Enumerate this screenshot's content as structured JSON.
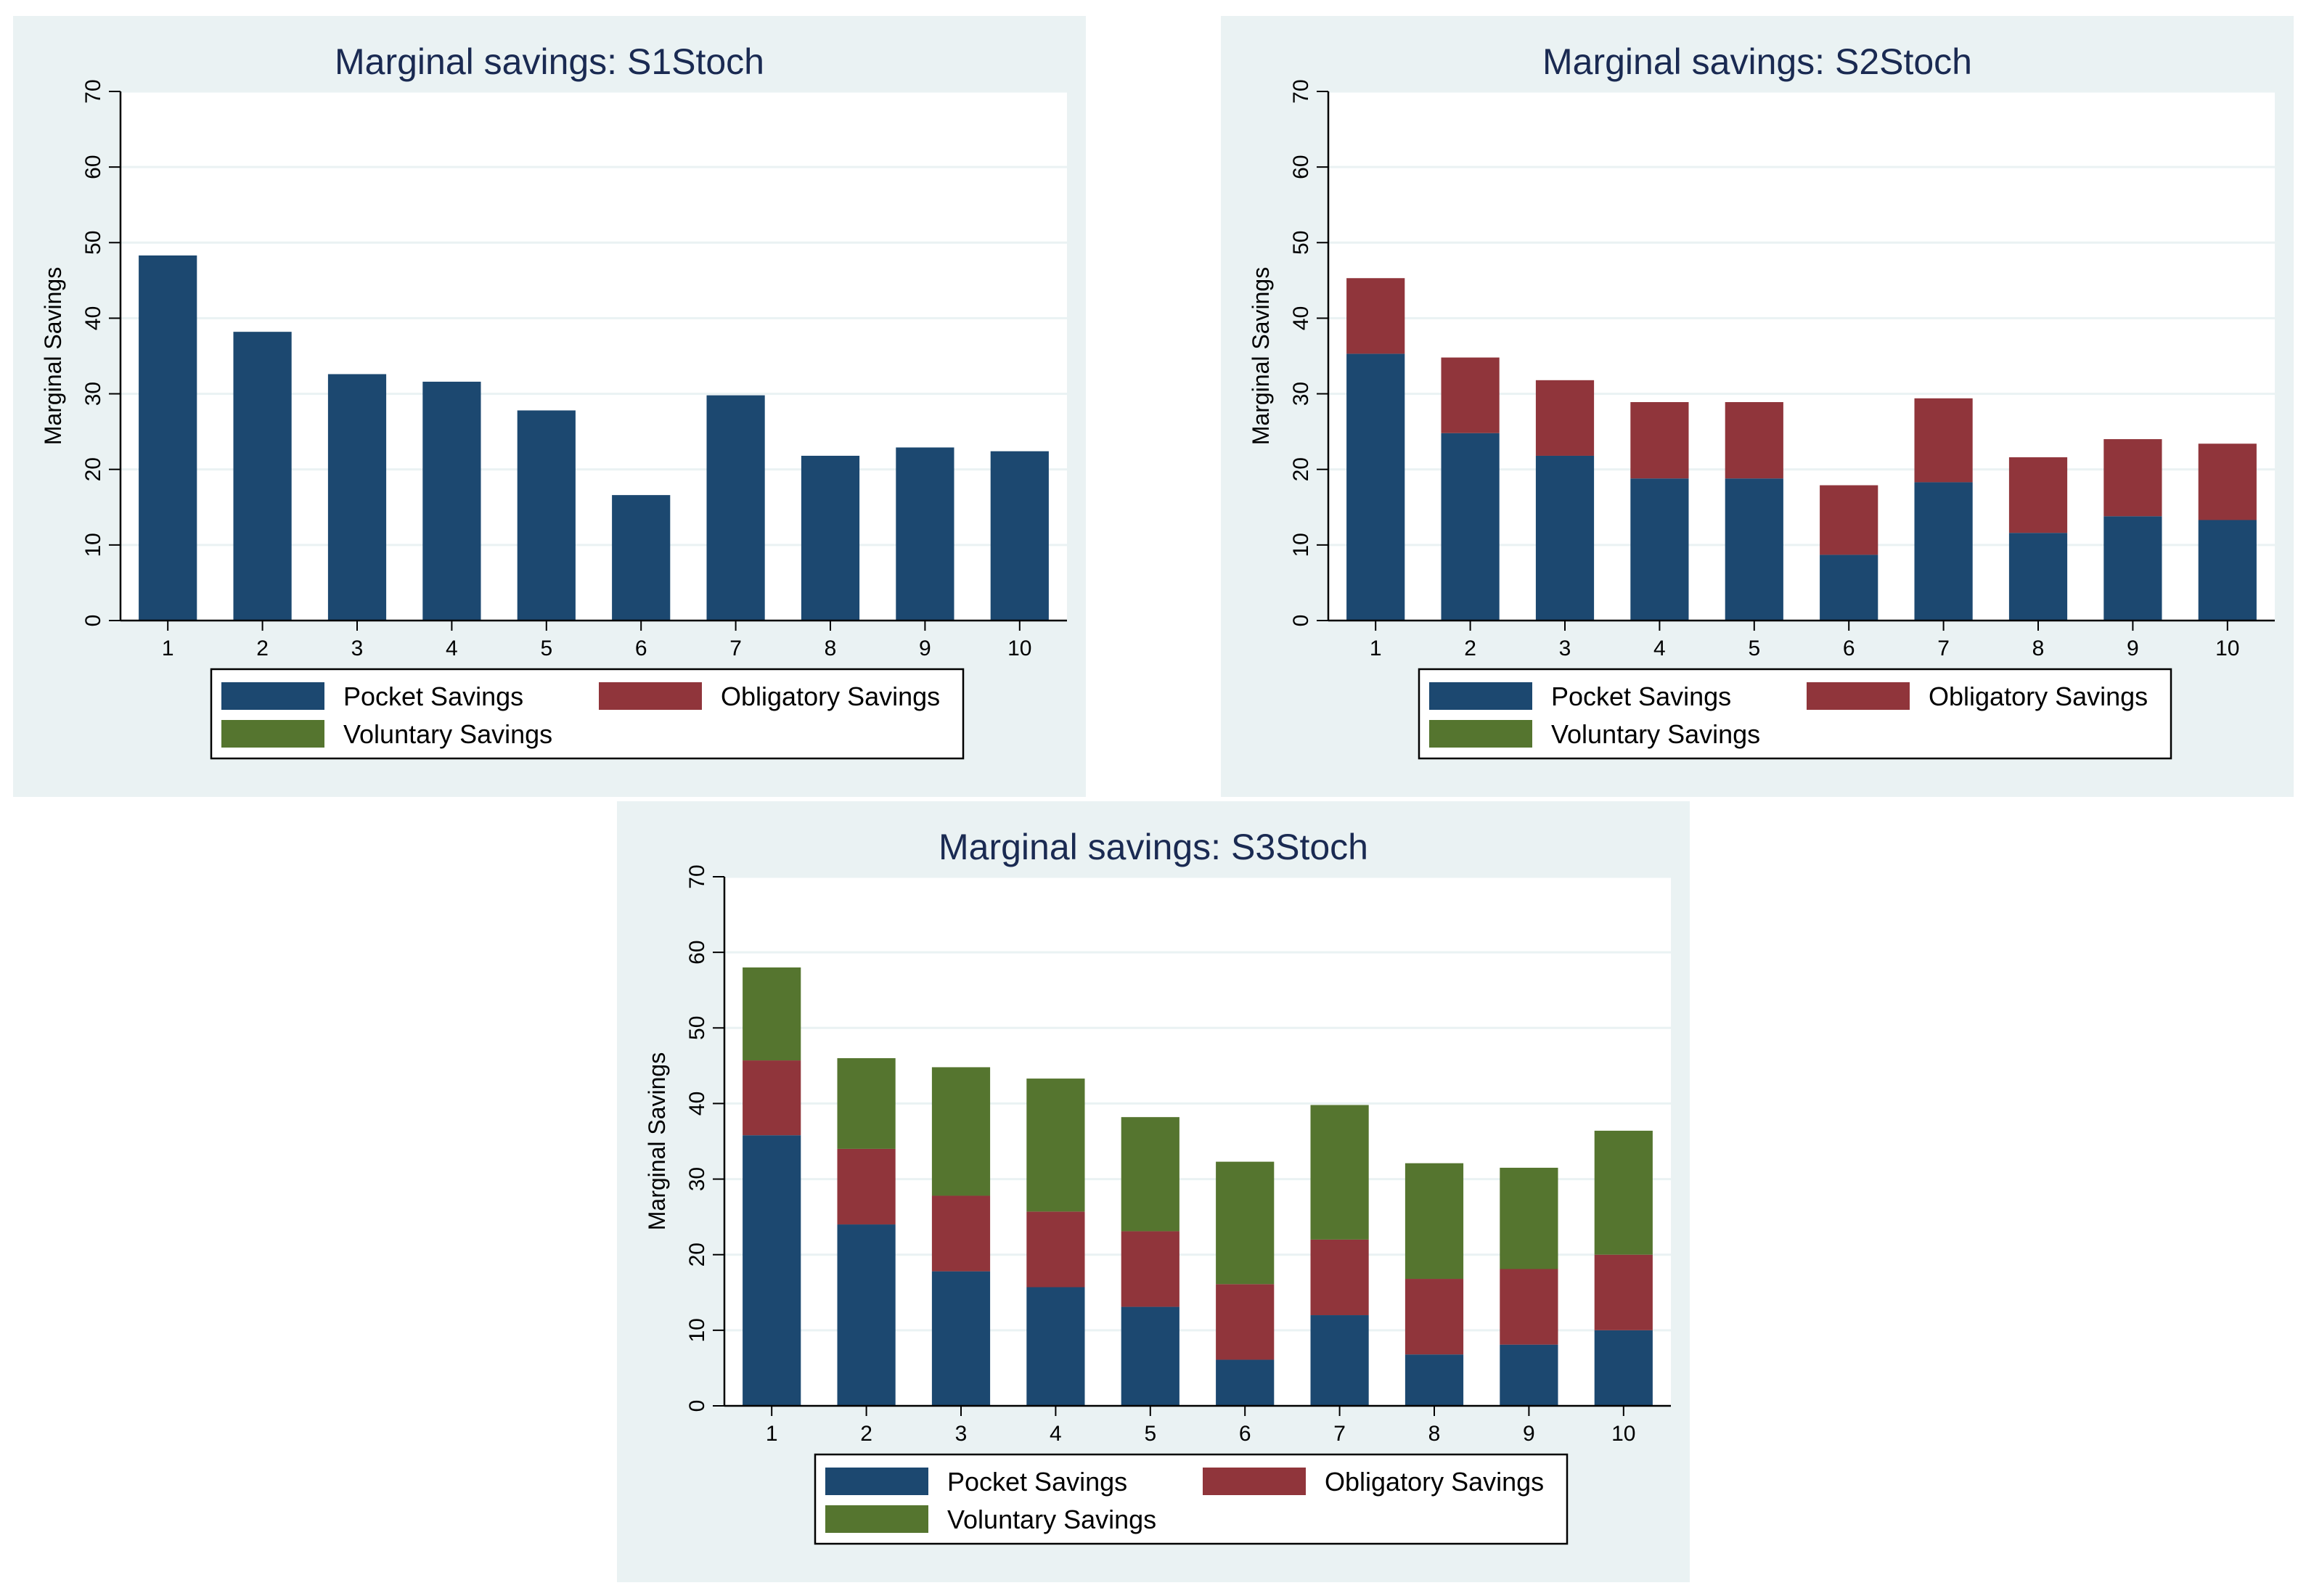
{
  "colors": {
    "pocket": "#1c4870",
    "obligatory": "#90353b",
    "voluntary": "#55752f",
    "panel_bg": "#eaf2f3",
    "grid": "#eaf2f3"
  },
  "chart_data": [
    {
      "type": "bar",
      "stacked": true,
      "title": "Marginal savings: S1Stoch",
      "xlabel": "",
      "ylabel": "Marginal Savings",
      "ylim": [
        0,
        70
      ],
      "yticks": [
        "0",
        "10",
        "20",
        "30",
        "40",
        "50",
        "60",
        "70"
      ],
      "categories": [
        "1",
        "2",
        "3",
        "4",
        "5",
        "6",
        "7",
        "8",
        "9",
        "10"
      ],
      "series": [
        {
          "name": "Pocket Savings",
          "values": [
            48.3,
            38.2,
            32.6,
            31.6,
            27.8,
            16.6,
            29.8,
            21.8,
            22.9,
            22.4
          ]
        },
        {
          "name": "Obligatory Savings",
          "values": [
            0,
            0,
            0,
            0,
            0,
            0,
            0,
            0,
            0,
            0
          ]
        },
        {
          "name": "Voluntary Savings",
          "values": [
            0,
            0,
            0,
            0,
            0,
            0,
            0,
            0,
            0,
            0
          ]
        }
      ],
      "legend": [
        "Pocket Savings",
        "Obligatory Savings",
        "Voluntary Savings"
      ],
      "legend_position": "bottom",
      "grid": true
    },
    {
      "type": "bar",
      "stacked": true,
      "title": "Marginal savings: S2Stoch",
      "xlabel": "",
      "ylabel": "Marginal Savings",
      "ylim": [
        0,
        70
      ],
      "yticks": [
        "0",
        "10",
        "20",
        "30",
        "40",
        "50",
        "60",
        "70"
      ],
      "categories": [
        "1",
        "2",
        "3",
        "4",
        "5",
        "6",
        "7",
        "8",
        "9",
        "10"
      ],
      "series": [
        {
          "name": "Pocket Savings",
          "values": [
            35.3,
            24.8,
            21.8,
            18.8,
            18.8,
            8.7,
            18.3,
            11.6,
            13.8,
            13.3
          ]
        },
        {
          "name": "Obligatory Savings",
          "values": [
            10.0,
            10.0,
            10.0,
            10.1,
            10.1,
            9.2,
            11.1,
            10.0,
            10.2,
            10.1
          ]
        },
        {
          "name": "Voluntary Savings",
          "values": [
            0,
            0,
            0,
            0,
            0,
            0,
            0,
            0,
            0,
            0
          ]
        }
      ],
      "legend": [
        "Pocket Savings",
        "Obligatory Savings",
        "Voluntary Savings"
      ],
      "legend_position": "bottom",
      "grid": true
    },
    {
      "type": "bar",
      "stacked": true,
      "title": "Marginal savings: S3Stoch",
      "xlabel": "",
      "ylabel": "Marginal Savings",
      "ylim": [
        0,
        70
      ],
      "yticks": [
        "0",
        "10",
        "20",
        "30",
        "40",
        "50",
        "60",
        "70"
      ],
      "categories": [
        "1",
        "2",
        "3",
        "4",
        "5",
        "6",
        "7",
        "8",
        "9",
        "10"
      ],
      "series": [
        {
          "name": "Pocket Savings",
          "values": [
            35.8,
            24.0,
            17.8,
            15.7,
            13.1,
            6.1,
            12.0,
            6.8,
            8.1,
            10.0
          ]
        },
        {
          "name": "Obligatory Savings",
          "values": [
            9.9,
            10.0,
            10.0,
            10.0,
            10.0,
            10.0,
            10.0,
            10.0,
            10.0,
            10.0
          ]
        },
        {
          "name": "Voluntary Savings",
          "values": [
            12.3,
            12.0,
            17.0,
            17.6,
            15.1,
            16.2,
            17.8,
            15.3,
            13.4,
            16.4
          ]
        }
      ],
      "legend": [
        "Pocket Savings",
        "Obligatory Savings",
        "Voluntary Savings"
      ],
      "legend_position": "bottom",
      "grid": true
    }
  ]
}
